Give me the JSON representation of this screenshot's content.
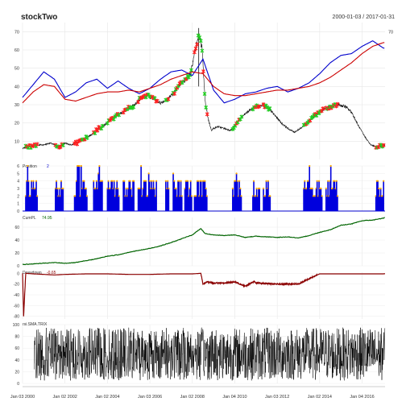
{
  "header": {
    "title": "stockTwo",
    "date_range": "2000-01-03 / 2017-01-31"
  },
  "chart_data": [
    {
      "type": "line",
      "panel": "price",
      "xlim": [
        2000.0,
        2017.08
      ],
      "ylim": [
        0,
        75
      ],
      "y_ticks": [
        10,
        20,
        30,
        40,
        50,
        60,
        70
      ],
      "right_tick_labels": [
        "70",
        "70"
      ],
      "grid": true,
      "series": [
        {
          "color": "#000000",
          "x": [
            2000.0,
            2000.3,
            2000.6,
            2001.0,
            2001.3,
            2001.7,
            2002.0,
            2002.3,
            2002.7,
            2003.0,
            2003.3,
            2003.6,
            2004.0,
            2004.3,
            2004.6,
            2005.0,
            2005.3,
            2005.6,
            2005.9,
            2006.2,
            2006.5,
            2006.8,
            2007.1,
            2007.4,
            2007.7,
            2007.9,
            2008.1,
            2008.3,
            2008.45,
            2008.6,
            2008.75,
            2008.9,
            2009.0,
            2009.2,
            2009.5,
            2009.8,
            2010.1,
            2010.4,
            2010.7,
            2011.0,
            2011.3,
            2011.6,
            2011.9,
            2012.2,
            2012.5,
            2012.8,
            2013.1,
            2013.4,
            2013.7,
            2014.0,
            2014.3,
            2014.6,
            2014.9,
            2015.2,
            2015.5,
            2015.8,
            2016.1,
            2016.4,
            2016.7,
            2017.0,
            2017.08
          ],
          "y": [
            6,
            7,
            8,
            8,
            9,
            7,
            9,
            8,
            10,
            12,
            14,
            17,
            20,
            23,
            25,
            28,
            30,
            34,
            35,
            33,
            31,
            33,
            36,
            41,
            44,
            47,
            58,
            68,
            62,
            32,
            22,
            16,
            17,
            18,
            17,
            16,
            20,
            24,
            27,
            29,
            30,
            28,
            24,
            20,
            17,
            15,
            17,
            20,
            23,
            26,
            28,
            29,
            30,
            29,
            26,
            19,
            13,
            8,
            7,
            7,
            8
          ]
        },
        {
          "name": "",
          "color": "#0000cc",
          "x": [
            2000.0,
            2000.5,
            2001.0,
            2001.5,
            2002.0,
            2002.5,
            2003.0,
            2003.5,
            2004.0,
            2004.5,
            2005.0,
            2005.5,
            2006.0,
            2006.5,
            2007.0,
            2007.5,
            2008.0,
            2008.5,
            2009.0,
            2009.5,
            2010.0,
            2010.5,
            2011.0,
            2011.5,
            2012.0,
            2012.5,
            2013.0,
            2013.5,
            2014.0,
            2014.5,
            2015.0,
            2015.5,
            2016.0,
            2016.5,
            2017.0
          ],
          "y": [
            34,
            41,
            48,
            44,
            34,
            37,
            42,
            44,
            39,
            43,
            39,
            36,
            39,
            44,
            48,
            49,
            46,
            55,
            38,
            31,
            33,
            36,
            37,
            39,
            40,
            37,
            39,
            42,
            47,
            53,
            57,
            58,
            62,
            65,
            61
          ]
        },
        {
          "name": "",
          "color": "#cc0000",
          "x": [
            2000.0,
            2000.5,
            2001.0,
            2001.5,
            2002.0,
            2002.5,
            2003.0,
            2003.5,
            2004.0,
            2004.5,
            2005.0,
            2005.5,
            2006.0,
            2006.5,
            2007.0,
            2007.5,
            2008.0,
            2008.5,
            2009.0,
            2009.5,
            2010.0,
            2010.5,
            2011.0,
            2011.5,
            2012.0,
            2012.5,
            2013.0,
            2013.5,
            2014.0,
            2014.5,
            2015.0,
            2015.5,
            2016.0,
            2016.5,
            2017.0
          ],
          "y": [
            31,
            37,
            41,
            40,
            33,
            32,
            34,
            36,
            37,
            37,
            38,
            37,
            39,
            41,
            44,
            46,
            48,
            47,
            40,
            36,
            35,
            35,
            36,
            37,
            38,
            38,
            39,
            40,
            42,
            45,
            49,
            53,
            58,
            62,
            64
          ]
        }
      ]
    },
    {
      "type": "bar",
      "panel": "position",
      "label": "Position",
      "label_value": "2",
      "ylim": [
        0,
        6
      ],
      "y_ticks": [
        0,
        1,
        2,
        3,
        4,
        5,
        6
      ],
      "x_ranges": [
        [
          2000.15,
          2000.7
        ],
        [
          2001.55,
          2001.95
        ],
        [
          2002.45,
          2003.05
        ],
        [
          2003.35,
          2003.8
        ],
        [
          2004.0,
          2004.55
        ],
        [
          2004.75,
          2005.25
        ],
        [
          2005.45,
          2006.35
        ],
        [
          2006.75,
          2006.9
        ],
        [
          2007.1,
          2007.55
        ],
        [
          2007.65,
          2008.0
        ],
        [
          2008.1,
          2008.7
        ],
        [
          2009.9,
          2010.35
        ],
        [
          2010.85,
          2011.2
        ],
        [
          2011.35,
          2011.7
        ],
        [
          2013.25,
          2014.15
        ],
        [
          2014.3,
          2014.85
        ],
        [
          2016.65,
          2017.05
        ]
      ]
    },
    {
      "type": "area",
      "panel": "cumpl",
      "label": "CumPL",
      "label_value": "74.95",
      "ylim": [
        0,
        75
      ],
      "y_ticks": [
        0,
        20,
        40,
        60
      ],
      "x": [
        2000.0,
        2001.0,
        2001.5,
        2002.0,
        2002.5,
        2003.0,
        2003.5,
        2004.0,
        2004.5,
        2005.0,
        2005.5,
        2006.0,
        2006.5,
        2007.0,
        2007.5,
        2008.0,
        2008.4,
        2008.6,
        2009.0,
        2009.5,
        2010.0,
        2010.5,
        2011.0,
        2011.5,
        2012.0,
        2012.5,
        2013.0,
        2013.5,
        2014.0,
        2014.5,
        2015.0,
        2015.5,
        2016.0,
        2016.5,
        2017.0,
        2017.08
      ],
      "y": [
        2,
        4,
        5,
        4,
        5,
        8,
        11,
        15,
        17,
        21,
        24,
        27,
        31,
        36,
        42,
        48,
        58,
        50,
        48,
        47,
        48,
        44,
        46,
        45,
        44,
        45,
        43,
        47,
        52,
        56,
        63,
        65,
        70,
        71,
        74,
        75
      ]
    },
    {
      "type": "area",
      "panel": "drawdown",
      "label": "Drawdown",
      "label_value": "-0.65",
      "ylim": [
        -85,
        2
      ],
      "y_ticks": [
        0,
        -20,
        -40,
        -60,
        -80
      ],
      "x": [
        2000.0,
        2000.05,
        2000.15,
        2000.5,
        2001.0,
        2001.5,
        2002.0,
        2003.0,
        2004.0,
        2005.0,
        2006.0,
        2007.0,
        2008.0,
        2008.4,
        2008.5,
        2008.7,
        2009.0,
        2009.5,
        2010.0,
        2010.5,
        2010.9,
        2011.0,
        2011.5,
        2012.0,
        2012.5,
        2013.0,
        2013.5,
        2014.0,
        2014.5,
        2015.0,
        2016.0,
        2017.0,
        2017.08
      ],
      "y": [
        0,
        -80,
        0,
        -1,
        -2,
        -3,
        -2,
        -1,
        -1,
        -2,
        -2,
        -1,
        -1,
        0,
        -20,
        -16,
        -18,
        -18,
        -16,
        -24,
        -15,
        -18,
        -19,
        -20,
        -20,
        -20,
        -10,
        -1,
        -1,
        -1,
        -1,
        -1,
        -0.65
      ]
    },
    {
      "type": "line",
      "panel": "rsi",
      "label": "rsi.SMA.TRIX",
      "ylim": [
        0,
        100
      ],
      "y_ticks": [
        0,
        20,
        40,
        60,
        80,
        100
      ],
      "series": [
        {
          "color": "#000000",
          "noise_band": [
            5,
            95
          ]
        }
      ]
    }
  ],
  "x_axis": {
    "tick_labels": [
      "Jan 03 2000",
      "Jan 02 2002",
      "Jan 02 2004",
      "Jan 03 2006",
      "Jan 02 2008",
      "Jan 04 2010",
      "Jan 03 2012",
      "Jan 02 2014",
      "Jan 04 2016"
    ],
    "tick_values": [
      2000.0,
      2002.0,
      2004.0,
      2006.0,
      2008.0,
      2010.0,
      2012.0,
      2014.0,
      2016.0
    ]
  }
}
